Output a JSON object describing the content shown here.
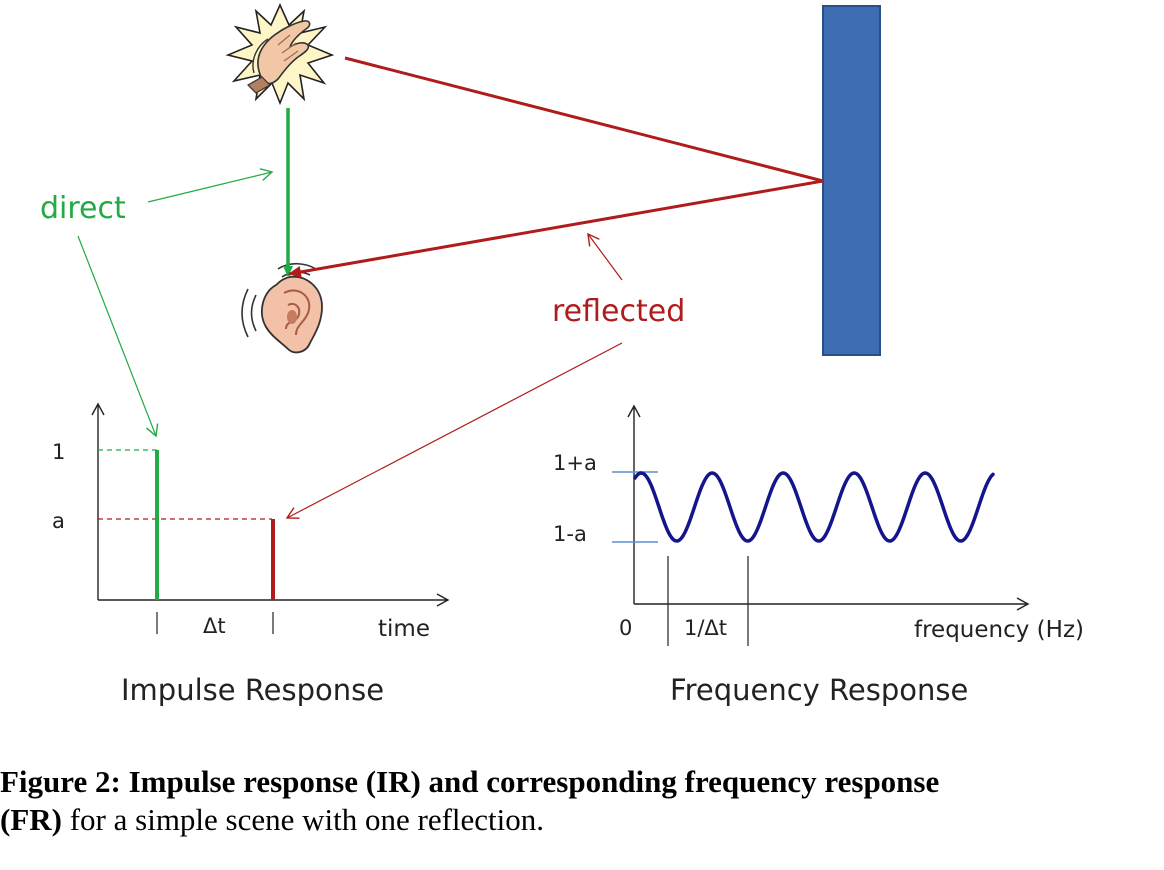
{
  "labels": {
    "direct": "direct",
    "reflected": "reflected"
  },
  "impulse_response": {
    "title": "Impulse Response",
    "ytick_1": "1",
    "ytick_a": "a",
    "delta_label": "Δt",
    "xlabel": "time"
  },
  "frequency_response": {
    "title": "Frequency Response",
    "ytick_high": "1+a",
    "ytick_low": "1-a",
    "x_origin": "0",
    "period_label": "1/Δt",
    "xlabel": "frequency (Hz)"
  },
  "caption": {
    "bold_part": "Figure 2: Impulse response (IR) and corresponding frequency response",
    "line2_bold": "(FR)",
    "line2_rest": " for a simple scene with one reflection."
  },
  "colors": {
    "direct": "#22aa44",
    "reflected": "#b01c1c",
    "wall": "#3f6db3",
    "wall_border": "#2a4f87",
    "curve": "#14148c",
    "tick_marks": "#5b8fcf"
  },
  "icons": {
    "source": "clapping-hands-icon",
    "listener": "ear-icon",
    "reflector": "wall"
  }
}
